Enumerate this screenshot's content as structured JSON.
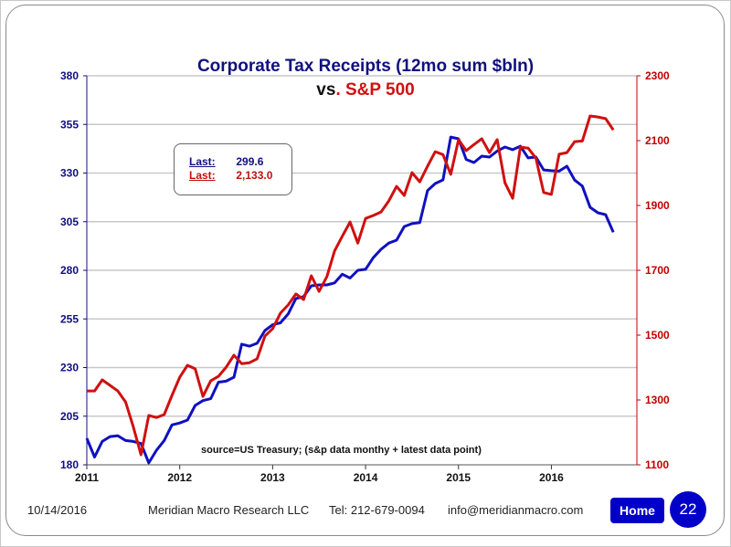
{
  "chart_data": {
    "type": "line",
    "title": "Corporate Tax Receipts (12mo sum $bln)",
    "subtitle_prefix": "vs",
    "subtitle_highlight": ". S&P 500",
    "annotation": "source=US Treasury; (s&p data monthy + latest data point)",
    "x_start": "2011-01",
    "x_frequency": "monthly",
    "x_ticks": [
      "2011",
      "2012",
      "2013",
      "2014",
      "2015",
      "2016"
    ],
    "xlim": [
      2011,
      2016.92
    ],
    "y_left": {
      "ticks": [
        180,
        205,
        230,
        255,
        280,
        305,
        330,
        355,
        380
      ],
      "ylim": [
        180,
        380
      ],
      "color": "#101080"
    },
    "y_right": {
      "ticks": [
        1100,
        1300,
        1500,
        1700,
        1900,
        2100,
        2300
      ],
      "ylim": [
        1100,
        2300
      ],
      "color": "#c00000"
    },
    "grid": "horizontal",
    "series": [
      {
        "axis": "left",
        "color": "#1010c0",
        "values": [
          193.6,
          184,
          192,
          194.5,
          195,
          192.5,
          192,
          191,
          181,
          187.5,
          192.5,
          200.5,
          201.5,
          203,
          210.5,
          213,
          214,
          222.5,
          223,
          225,
          242,
          241,
          242.5,
          249,
          252,
          253,
          257.5,
          265.5,
          266.5,
          272,
          272.5,
          272.5,
          273.5,
          278,
          276,
          280,
          280.5,
          286.5,
          290.8,
          294,
          295.5,
          302.5,
          304,
          304.5,
          321,
          324.6,
          326.5,
          348.5,
          347.6,
          337,
          335.4,
          338.7,
          338.2,
          341.3,
          343.4,
          342,
          343.8,
          337.8,
          338.2,
          331.6,
          331.2,
          331,
          333.5,
          326.4,
          323.3,
          312.4,
          309.6,
          308.6,
          299.6
        ]
      },
      {
        "axis": "right",
        "color": "#d01010",
        "values": [
          1328,
          1328,
          1362,
          1345,
          1328,
          1294,
          1218,
          1131,
          1252,
          1246,
          1255,
          1314,
          1370,
          1407,
          1396,
          1311,
          1359,
          1373,
          1401,
          1438,
          1412,
          1415,
          1427,
          1497,
          1520,
          1568,
          1593,
          1627,
          1610,
          1683,
          1635,
          1680,
          1760,
          1805,
          1849,
          1784,
          1860,
          1869,
          1880,
          1914,
          1959,
          1931,
          2001,
          1973,
          2021,
          2066,
          2057,
          1996,
          2103,
          2069,
          2088,
          2106,
          2063,
          2103,
          1970,
          1922,
          2080,
          2077,
          2046,
          1940,
          1934,
          2058,
          2063,
          2097,
          2099,
          2176,
          2173,
          2168,
          2133
        ]
      }
    ]
  },
  "legend": {
    "rows": [
      {
        "label": "Last:",
        "value": "299.6",
        "color": "#101080"
      },
      {
        "label": "Last:",
        "value": "2,133.0",
        "color": "#c01010"
      }
    ]
  },
  "footer": {
    "date": "10/14/2016",
    "company": "Meridian Macro Research LLC",
    "phone": "Tel: 212-679-0094",
    "email": "info@meridianmacro.com",
    "home_label": "Home",
    "page_number": "22"
  }
}
